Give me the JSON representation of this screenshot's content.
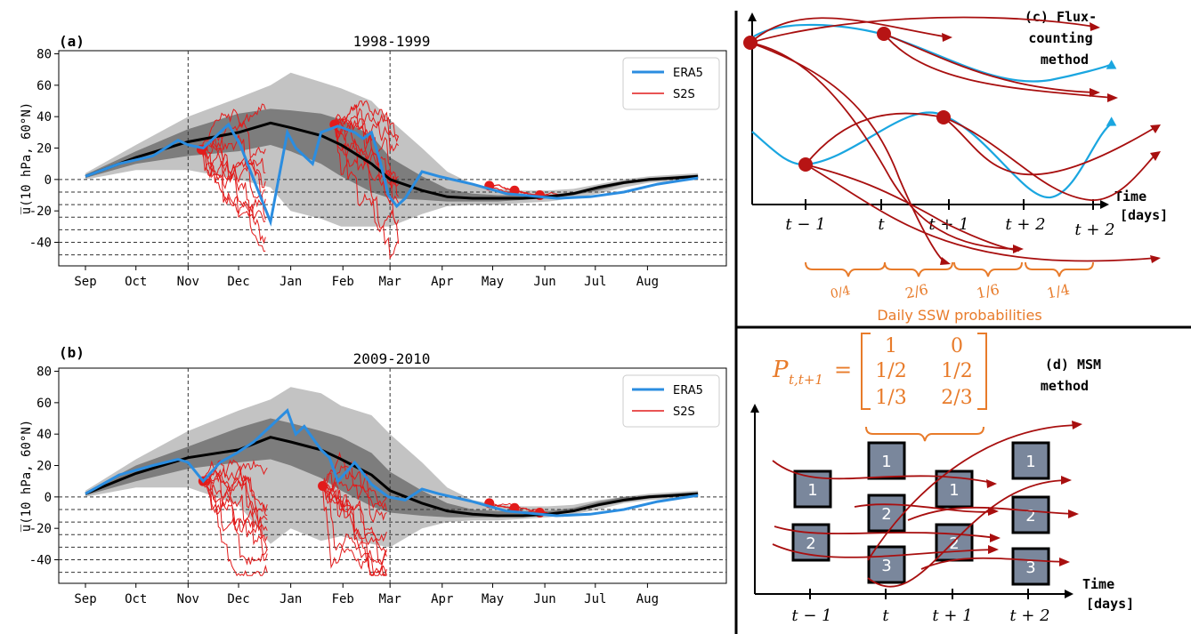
{
  "chart_data": [
    {
      "type": "line",
      "panel_label": "(a)",
      "title": "1998-1999",
      "ylabel": "u̅(10 hPa, 60°N)",
      "months": [
        "Sep",
        "Oct",
        "Nov",
        "Dec",
        "Jan",
        "Feb",
        "Mar",
        "Apr",
        "May",
        "Jun",
        "Jul",
        "Aug"
      ],
      "xlim": [
        0,
        365
      ],
      "ylim": [
        -55,
        82
      ],
      "yticks": [
        80,
        60,
        40,
        20,
        0,
        -20,
        -40
      ],
      "hlines": [
        0,
        -8,
        -16,
        -24,
        -32,
        -40,
        -48
      ],
      "vlines": [
        61,
        181
      ],
      "legend": [
        "ERA5",
        "S2S"
      ],
      "climatology": {
        "x": [
          0,
          30,
          61,
          91,
          110,
          122,
          140,
          152,
          170,
          181,
          200,
          215,
          230,
          245,
          260,
          275,
          290,
          305,
          320,
          335,
          350,
          364
        ],
        "mean": [
          2,
          14,
          24,
          30,
          36,
          33,
          28,
          22,
          10,
          0,
          -7,
          -11,
          -12,
          -12,
          -12,
          -11,
          -9,
          -5,
          -2,
          0,
          1,
          2
        ],
        "inner_lo": [
          1,
          10,
          15,
          18,
          22,
          18,
          10,
          2,
          -8,
          -12,
          -13,
          -14,
          -14,
          -14,
          -13,
          -12,
          -10,
          -7,
          -3,
          -1,
          0,
          1
        ],
        "inner_hi": [
          3,
          18,
          32,
          42,
          45,
          44,
          42,
          38,
          28,
          14,
          2,
          -6,
          -9,
          -10,
          -10,
          -10,
          -8,
          -4,
          -1,
          1,
          2,
          3
        ],
        "outer_lo": [
          0,
          6,
          6,
          0,
          -5,
          -20,
          -25,
          -30,
          -30,
          -30,
          -22,
          -17,
          -16,
          -16,
          -15,
          -14,
          -12,
          -9,
          -5,
          -2,
          -1,
          0
        ],
        "outer_hi": [
          4,
          22,
          40,
          52,
          60,
          68,
          62,
          58,
          50,
          38,
          20,
          5,
          -3,
          -6,
          -7,
          -7,
          -6,
          -3,
          0,
          2,
          3,
          4
        ]
      },
      "era5": {
        "x": [
          0,
          20,
          40,
          55,
          61,
          70,
          80,
          85,
          92,
          100,
          110,
          120,
          125,
          135,
          140,
          150,
          160,
          165,
          170,
          175,
          180,
          185,
          190,
          200,
          210,
          230,
          250,
          280,
          300,
          320,
          340,
          364
        ],
        "y": [
          2,
          10,
          15,
          25,
          22,
          20,
          30,
          35,
          22,
          0,
          -27,
          30,
          20,
          10,
          30,
          34,
          30,
          26,
          30,
          12,
          -10,
          -17,
          -12,
          5,
          2,
          -3,
          -9,
          -12,
          -11,
          -8,
          -3,
          1
        ]
      },
      "forecast_init": [
        {
          "x": 69,
          "y": 19
        },
        {
          "x": 148,
          "y": 35
        },
        {
          "x": 240,
          "y": -4
        },
        {
          "x": 255,
          "y": -7
        },
        {
          "x": 270,
          "y": -10
        }
      ]
    },
    {
      "type": "line",
      "panel_label": "(b)",
      "title": "2009-2010",
      "ylabel": "u̅(10 hPa, 60°N)",
      "months": [
        "Sep",
        "Oct",
        "Nov",
        "Dec",
        "Jan",
        "Feb",
        "Mar",
        "Apr",
        "May",
        "Jun",
        "Jul",
        "Aug"
      ],
      "xlim": [
        0,
        365
      ],
      "ylim": [
        -55,
        82
      ],
      "yticks": [
        80,
        60,
        40,
        20,
        0,
        -20,
        -40
      ],
      "hlines": [
        0,
        -8,
        -16,
        -24,
        -32,
        -40,
        -48
      ],
      "vlines": [
        61,
        181
      ],
      "legend": [
        "ERA5",
        "S2S"
      ],
      "climatology": {
        "x": [
          0,
          30,
          61,
          91,
          110,
          122,
          140,
          152,
          170,
          181,
          200,
          215,
          230,
          245,
          260,
          275,
          290,
          305,
          320,
          335,
          350,
          364
        ],
        "mean": [
          2,
          15,
          25,
          30,
          38,
          35,
          30,
          24,
          14,
          4,
          -4,
          -9,
          -11,
          -12,
          -12,
          -11,
          -9,
          -5,
          -2,
          0,
          1,
          2
        ],
        "inner_lo": [
          1,
          10,
          18,
          22,
          24,
          20,
          12,
          4,
          -6,
          -10,
          -12,
          -13,
          -13,
          -13,
          -12,
          -11,
          -9,
          -6,
          -3,
          -1,
          0,
          1
        ],
        "inner_hi": [
          3,
          20,
          32,
          44,
          50,
          47,
          42,
          38,
          28,
          16,
          4,
          -4,
          -8,
          -9,
          -9,
          -9,
          -7,
          -3,
          0,
          1,
          2,
          3
        ],
        "outer_lo": [
          0,
          6,
          6,
          -5,
          -30,
          -20,
          -28,
          -25,
          -30,
          -32,
          -20,
          -16,
          -15,
          -15,
          -14,
          -13,
          -11,
          -8,
          -4,
          -2,
          -1,
          0
        ],
        "outer_hi": [
          4,
          24,
          42,
          55,
          62,
          70,
          66,
          58,
          52,
          40,
          22,
          6,
          -2,
          -5,
          -6,
          -6,
          -5,
          -2,
          0,
          2,
          3,
          4
        ]
      },
      "era5": {
        "x": [
          0,
          20,
          40,
          55,
          61,
          70,
          80,
          90,
          100,
          110,
          120,
          125,
          130,
          140,
          145,
          150,
          160,
          170,
          180,
          190,
          200,
          210,
          230,
          250,
          280,
          300,
          320,
          340,
          364
        ],
        "y": [
          2,
          14,
          20,
          24,
          22,
          10,
          22,
          28,
          35,
          45,
          55,
          40,
          45,
          30,
          25,
          10,
          22,
          8,
          0,
          -2,
          5,
          2,
          -3,
          -9,
          -12,
          -11,
          -8,
          -3,
          1
        ]
      },
      "forecast_init": [
        {
          "x": 70,
          "y": 10
        },
        {
          "x": 141,
          "y": 7
        },
        {
          "x": 240,
          "y": -4
        },
        {
          "x": 255,
          "y": -7
        },
        {
          "x": 270,
          "y": -10
        }
      ]
    }
  ],
  "diagram_c": {
    "label": "(c) Flux-\ncounting\nmethod",
    "time_label": "Time\n[days]",
    "ticks": [
      "t − 1",
      "t",
      "t + 1",
      "t + 2",
      "t + 2"
    ],
    "probabilities": [
      "0/4",
      "2/6",
      "1/6",
      "1/4"
    ],
    "caption": "Daily SSW probabilities"
  },
  "diagram_d": {
    "label": "(d) MSM\nmethod",
    "time_label": "Time\n[days]",
    "ticks": [
      "t − 1",
      "t",
      "t + 1",
      "t + 2"
    ],
    "matrix_lhs": "P",
    "matrix_sub": "t,t+1",
    "matrix_rows": [
      [
        "1",
        "0"
      ],
      [
        "1/2",
        "1/2"
      ],
      [
        "1/3",
        "2/3"
      ]
    ],
    "boxes": [
      "1",
      "2",
      "1",
      "2",
      "3",
      "1",
      "2",
      "1",
      "2",
      "3"
    ]
  },
  "colors": {
    "era5": "#2b8de0",
    "s2s": "#e21b1b",
    "dark_red": "#a80f0f",
    "cyan": "#1aa6e0",
    "orange": "#e87b2a",
    "box_fill": "#7a879c",
    "band_outer": "#c3c3c3",
    "band_inner": "#7d7d7d"
  }
}
